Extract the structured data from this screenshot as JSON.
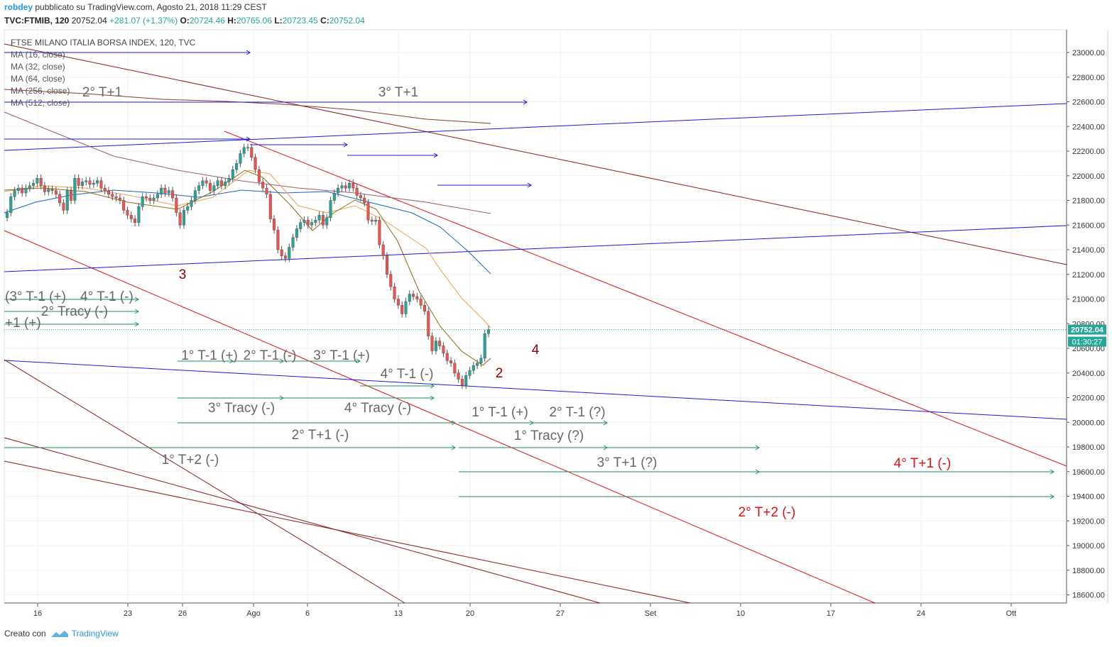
{
  "header": {
    "user": "robdey",
    "published": "pubblicato su TradingView.com, Agosto 21, 2018 11:29 CEST",
    "symbol": "TVC:FTMIB, 120",
    "price": "20752.04",
    "change": "+281.07 (+1.37%)",
    "open_label": "O:",
    "open": "20724.46",
    "high_label": "H:",
    "high": "20765.06",
    "low_label": "L:",
    "low": "20723.45",
    "close_label": "C:",
    "close": "20752.04"
  },
  "legend": {
    "title": "FTSE MILANO ITALIA BORSA INDEX, 120, TVC",
    "ma": [
      "MA (16, close)",
      "MA (32, close)",
      "MA (64, close)",
      "MA (256, close)",
      "MA (512, close)"
    ]
  },
  "footer": {
    "created_with": "Creato con",
    "brand": "TradingView"
  },
  "colors": {
    "up": "#26a69a",
    "down": "#ef5350",
    "blue": "#1a1adc",
    "red": "#e01010",
    "darkred": "#8b1a1a",
    "green": "#1f8f6a",
    "gray_text": "#666666",
    "ma16": "#8b6914",
    "ma32": "#f0a050",
    "ma64": "#1565c0",
    "ma256": "#a05a6a",
    "ma512": "#8b3a2a"
  },
  "chart_data": {
    "type": "candlestick",
    "ylim": [
      18500,
      23150
    ],
    "y_ticks": [
      "23000.00",
      "22800.00",
      "22600.00",
      "22400.00",
      "22200.00",
      "22000.00",
      "21800.00",
      "21600.00",
      "21400.00",
      "21200.00",
      "21000.00",
      "20800.00",
      "20600.00",
      "20400.00",
      "20200.00",
      "20000.00",
      "19800.00",
      "19600.00",
      "19400.00",
      "19200.00",
      "19000.00",
      "18800.00",
      "18600.00"
    ],
    "x_ticks": [
      "16",
      "23",
      "26",
      "Ago",
      "6",
      "13",
      "20",
      "27",
      "Set",
      "10",
      "17",
      "24",
      "Ott"
    ],
    "last_price": "20752.04",
    "countdown": "01:30:27",
    "closes": [
      21700,
      21830,
      21880,
      21900,
      21860,
      21900,
      21920,
      21940,
      21980,
      21920,
      21870,
      21890,
      21880,
      21850,
      21780,
      21720,
      21880,
      21800,
      21980,
      21920,
      21950,
      21960,
      21930,
      21940,
      21960,
      21900,
      21880,
      21850,
      21830,
      21820,
      21800,
      21720,
      21680,
      21650,
      21620,
      21750,
      21830,
      21820,
      21800,
      21820,
      21850,
      21900,
      21860,
      21880,
      21820,
      21700,
      21600,
      21720,
      21750,
      21800,
      21880,
      21920,
      21960,
      21940,
      21880,
      21920,
      21960,
      21920,
      21950,
      21980,
      22050,
      22100,
      22180,
      22230,
      22230,
      22150,
      22050,
      21950,
      21900,
      21850,
      21650,
      21560,
      21400,
      21350,
      21330,
      21420,
      21500,
      21570,
      21620,
      21640,
      21600,
      21620,
      21640,
      21680,
      21600,
      21660,
      21800,
      21860,
      21900,
      21920,
      21900,
      21940,
      21900,
      21840,
      21820,
      21780,
      21640,
      21630,
      21640,
      21440,
      21350,
      21200,
      21100,
      21000,
      20950,
      20880,
      20980,
      21040,
      21020,
      21000,
      20950,
      20900,
      20700,
      20580,
      20660,
      20620,
      20560,
      20500,
      20480,
      20400,
      20350,
      20300,
      20380,
      20420,
      20460,
      20480,
      20520,
      20720,
      20752
    ],
    "annotations_gray": [
      "(3° T-1 (+)",
      "4° T-1 (-)",
      "2° Tracy (-)",
      "+1 (+)",
      "1° T-1 (+)",
      "2° T-1 (-)",
      "3° T-1 (+)",
      "4° T-1 (-)",
      "3° Tracy (-)",
      "4° Tracy (-)",
      "1° T-1 (+)",
      "2° T-1 (?)",
      "2° T+1 (-)",
      "1° Tracy (?)",
      "1° T+2 (-)",
      "3° T+1 (?)",
      "2° T+1",
      "3° T+1"
    ],
    "annotations_red": [
      "4° T+1 (-)",
      "2° T+2 (-)"
    ],
    "wave_labels": [
      "3",
      "4",
      "2"
    ]
  }
}
